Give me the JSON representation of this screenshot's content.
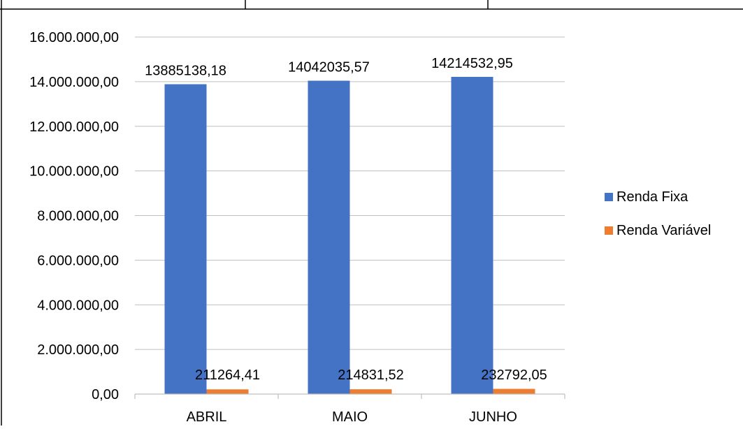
{
  "chart_data": {
    "type": "bar",
    "categories": [
      "ABRIL",
      "MAIO",
      "JUNHO"
    ],
    "series": [
      {
        "name": "Renda Fixa",
        "values": [
          13885138.18,
          14042035.57,
          14214532.95
        ],
        "labels": [
          "13885138,18",
          "14042035,57",
          "14214532,95"
        ],
        "color": "#4472C4"
      },
      {
        "name": "Renda Variável",
        "values": [
          211264.41,
          214831.52,
          232792.05
        ],
        "labels": [
          "211264,41",
          "214831,52",
          "232792,05"
        ],
        "color": "#ED7D31"
      }
    ],
    "ylim": [
      0,
      16000000
    ],
    "yticks": [
      0,
      2000000,
      4000000,
      6000000,
      8000000,
      10000000,
      12000000,
      14000000,
      16000000
    ],
    "ytick_labels": [
      "0,00",
      "2.000.000,00",
      "4.000.000,00",
      "6.000.000,00",
      "8.000.000,00",
      "10.000.000,00",
      "12.000.000,00",
      "14.000.000,00",
      "16.000.000,00"
    ],
    "title": "",
    "xlabel": "",
    "ylabel": "",
    "grid": true,
    "legend_position": "right",
    "colors": {
      "gridline": "#BFBFBF",
      "text": "#000000",
      "border": "#000000"
    }
  }
}
